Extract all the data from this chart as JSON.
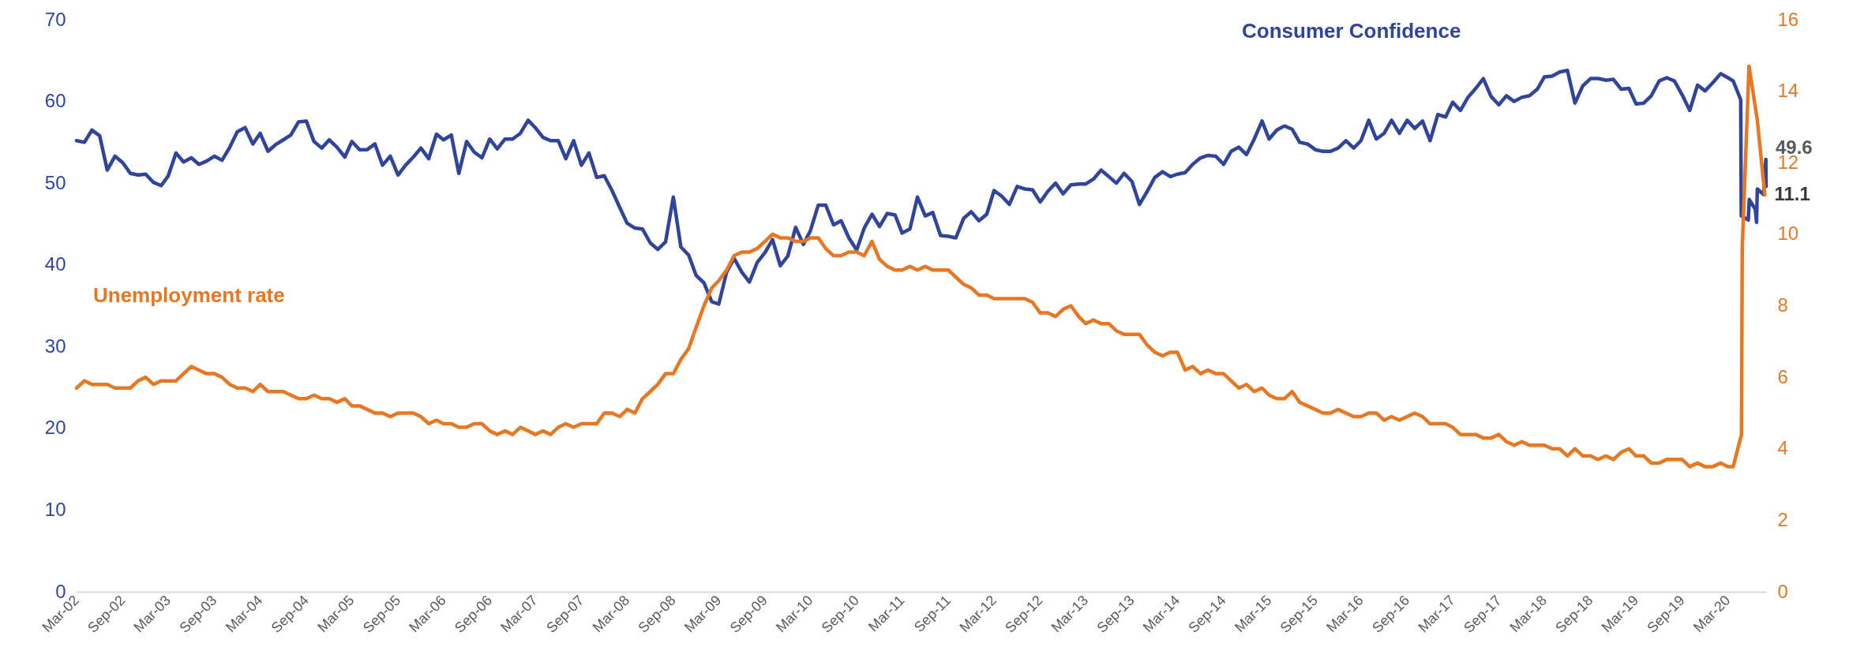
{
  "chart_data": {
    "type": "line",
    "xlim": [
      "2002-03",
      "2020-07-31"
    ],
    "xticks": [
      {
        "value": "2002-03",
        "label": "Mar-02"
      },
      {
        "value": "2002-09",
        "label": "Sep-02"
      },
      {
        "value": "2003-03",
        "label": "Mar-03"
      },
      {
        "value": "2003-09",
        "label": "Sep-03"
      },
      {
        "value": "2004-03",
        "label": "Mar-04"
      },
      {
        "value": "2004-09",
        "label": "Sep-04"
      },
      {
        "value": "2005-03",
        "label": "Mar-05"
      },
      {
        "value": "2005-09",
        "label": "Sep-05"
      },
      {
        "value": "2006-03",
        "label": "Mar-06"
      },
      {
        "value": "2006-09",
        "label": "Sep-06"
      },
      {
        "value": "2007-03",
        "label": "Mar-07"
      },
      {
        "value": "2007-09",
        "label": "Sep-07"
      },
      {
        "value": "2008-03",
        "label": "Mar-08"
      },
      {
        "value": "2008-09",
        "label": "Sep-08"
      },
      {
        "value": "2009-03",
        "label": "Mar-09"
      },
      {
        "value": "2009-09",
        "label": "Sep-09"
      },
      {
        "value": "2010-03",
        "label": "Mar-10"
      },
      {
        "value": "2010-09",
        "label": "Sep-10"
      },
      {
        "value": "2011-03",
        "label": "Mar-11"
      },
      {
        "value": "2011-09",
        "label": "Sep-11"
      },
      {
        "value": "2012-03",
        "label": "Mar-12"
      },
      {
        "value": "2012-09",
        "label": "Sep-12"
      },
      {
        "value": "2013-03",
        "label": "Mar-13"
      },
      {
        "value": "2013-09",
        "label": "Sep-13"
      },
      {
        "value": "2014-03",
        "label": "Mar-14"
      },
      {
        "value": "2014-09",
        "label": "Sep-14"
      },
      {
        "value": "2015-03",
        "label": "Mar-15"
      },
      {
        "value": "2015-09",
        "label": "Sep-15"
      },
      {
        "value": "2016-03",
        "label": "Mar-16"
      },
      {
        "value": "2016-09",
        "label": "Sep-16"
      },
      {
        "value": "2017-03",
        "label": "Mar-17"
      },
      {
        "value": "2017-09",
        "label": "Sep-17"
      },
      {
        "value": "2018-03",
        "label": "Mar-18"
      },
      {
        "value": "2018-09",
        "label": "Sep-18"
      },
      {
        "value": "2019-03",
        "label": "Mar-19"
      },
      {
        "value": "2019-09",
        "label": "Sep-19"
      },
      {
        "value": "2020-03",
        "label": "Mar-20"
      }
    ],
    "ylim": [
      0,
      70
    ],
    "yticks": [
      0,
      10,
      20,
      30,
      40,
      50,
      60,
      70
    ],
    "y2lim": [
      0,
      16
    ],
    "y2ticks": [
      0,
      2,
      4,
      6,
      8,
      10,
      12,
      14,
      16
    ],
    "series": [
      {
        "name": "Consumer Confidence",
        "color": "#2f459c",
        "x": [
          "2002-03",
          "2002-04",
          "2002-05",
          "2002-06",
          "2002-07",
          "2002-08",
          "2002-09",
          "2002-10",
          "2002-11",
          "2002-12",
          "2003-01",
          "2003-02",
          "2003-03",
          "2003-04",
          "2003-05",
          "2003-06",
          "2003-07",
          "2003-08",
          "2003-09",
          "2003-10",
          "2003-11",
          "2003-12",
          "2004-01",
          "2004-02",
          "2004-03",
          "2004-04",
          "2004-05",
          "2004-06",
          "2004-07",
          "2004-08",
          "2004-09",
          "2004-10",
          "2004-11",
          "2004-12",
          "2005-01",
          "2005-02",
          "2005-03",
          "2005-04",
          "2005-05",
          "2005-06",
          "2005-07",
          "2005-08",
          "2005-09",
          "2005-10",
          "2005-11",
          "2005-12",
          "2006-01",
          "2006-02",
          "2006-03",
          "2006-04",
          "2006-05",
          "2006-06",
          "2006-07",
          "2006-08",
          "2006-09",
          "2006-10",
          "2006-11",
          "2006-12",
          "2007-01",
          "2007-02",
          "2007-03",
          "2007-04",
          "2007-05",
          "2007-06",
          "2007-07",
          "2007-08",
          "2007-09",
          "2007-10",
          "2007-11",
          "2007-12",
          "2008-01",
          "2008-02",
          "2008-03",
          "2008-04",
          "2008-05",
          "2008-06",
          "2008-07",
          "2008-08",
          "2008-09",
          "2008-10",
          "2008-11",
          "2008-12",
          "2009-01",
          "2009-02",
          "2009-03",
          "2009-04",
          "2009-05",
          "2009-06",
          "2009-07",
          "2009-08",
          "2009-09",
          "2009-10",
          "2009-11",
          "2009-12",
          "2010-01",
          "2010-02",
          "2010-03",
          "2010-04",
          "2010-05",
          "2010-06",
          "2010-07",
          "2010-08",
          "2010-09",
          "2010-10",
          "2010-11",
          "2010-12",
          "2011-01",
          "2011-02",
          "2011-03",
          "2011-04",
          "2011-05",
          "2011-06",
          "2011-07",
          "2011-08",
          "2011-09",
          "2011-10",
          "2011-11",
          "2011-12",
          "2012-01",
          "2012-02",
          "2012-03",
          "2012-04",
          "2012-05",
          "2012-06",
          "2012-07",
          "2012-08",
          "2012-09",
          "2012-10",
          "2012-11",
          "2012-12",
          "2013-01",
          "2013-02",
          "2013-03",
          "2013-04",
          "2013-05",
          "2013-06",
          "2013-07",
          "2013-08",
          "2013-09",
          "2013-10",
          "2013-11",
          "2013-12",
          "2014-01",
          "2014-02",
          "2014-03",
          "2014-04",
          "2014-05",
          "2014-06",
          "2014-07",
          "2014-08",
          "2014-09",
          "2014-10",
          "2014-11",
          "2014-12",
          "2015-01",
          "2015-02",
          "2015-03",
          "2015-04",
          "2015-05",
          "2015-06",
          "2015-07",
          "2015-08",
          "2015-09",
          "2015-10",
          "2015-11",
          "2015-12",
          "2016-01",
          "2016-02",
          "2016-03",
          "2016-04",
          "2016-05",
          "2016-06",
          "2016-07",
          "2016-08",
          "2016-09",
          "2016-10",
          "2016-11",
          "2016-12",
          "2017-01",
          "2017-02",
          "2017-03",
          "2017-04",
          "2017-05",
          "2017-06",
          "2017-07",
          "2017-08",
          "2017-09",
          "2017-10",
          "2017-11",
          "2017-12",
          "2018-01",
          "2018-02",
          "2018-03",
          "2018-04",
          "2018-05",
          "2018-06",
          "2018-07",
          "2018-08",
          "2018-09",
          "2018-10",
          "2018-11",
          "2018-12",
          "2019-01",
          "2019-02",
          "2019-03",
          "2019-04",
          "2019-05",
          "2019-06",
          "2019-07",
          "2019-08",
          "2019-09",
          "2019-10",
          "2019-11",
          "2019-12",
          "2020-01",
          "2020-02",
          "2020-03",
          "2020-03-22",
          "2020-04-21",
          "2020-04-23",
          "2020-05-21",
          "2020-05-25",
          "2020-06-18",
          "2020-06-23",
          "2020-06-26",
          "2020-07-21",
          "2020-07-30",
          "2020-07-31"
        ],
        "values": [
          55.2,
          55.0,
          56.5,
          55.8,
          51.6,
          53.3,
          52.5,
          51.2,
          51.0,
          51.1,
          50.1,
          49.7,
          50.9,
          53.7,
          52.6,
          53.1,
          52.3,
          52.7,
          53.3,
          52.8,
          54.4,
          56.3,
          56.8,
          54.8,
          56.1,
          53.9,
          54.7,
          55.3,
          55.9,
          57.5,
          57.6,
          55.1,
          54.3,
          55.3,
          54.4,
          53.2,
          55.1,
          54.1,
          54.1,
          54.8,
          52.2,
          53.3,
          51.0,
          52.2,
          53.2,
          54.3,
          53.0,
          56.0,
          55.3,
          55.9,
          51.2,
          55.1,
          53.8,
          53.1,
          55.4,
          54.2,
          55.4,
          55.4,
          56.1,
          57.7,
          56.8,
          55.6,
          55.2,
          55.2,
          53.0,
          55.2,
          52.2,
          53.7,
          50.7,
          50.9,
          49.1,
          47.0,
          45.1,
          44.5,
          44.4,
          42.7,
          41.9,
          42.8,
          48.3,
          42.2,
          41.2,
          38.7,
          37.8,
          35.5,
          35.2,
          39.1,
          40.8,
          39.1,
          37.9,
          40.3,
          41.5,
          43.1,
          39.9,
          41.1,
          44.6,
          42.5,
          44.2,
          47.3,
          47.3,
          44.9,
          45.4,
          43.3,
          41.8,
          44.5,
          46.2,
          44.7,
          46.3,
          46.1,
          43.9,
          44.4,
          48.3,
          46.0,
          46.4,
          43.6,
          43.5,
          43.3,
          45.7,
          46.5,
          45.4,
          46.2,
          49.1,
          48.4,
          47.4,
          49.6,
          49.3,
          49.2,
          47.7,
          49.0,
          50.0,
          48.7,
          49.8,
          49.9,
          49.9,
          50.5,
          51.6,
          50.8,
          50.0,
          51.2,
          50.2,
          47.4,
          49.0,
          50.7,
          51.4,
          50.8,
          51.1,
          51.3,
          52.3,
          53.1,
          53.4,
          53.3,
          52.3,
          53.9,
          54.4,
          53.5,
          55.4,
          57.6,
          55.4,
          56.5,
          57.0,
          56.6,
          55.0,
          54.8,
          54.1,
          53.9,
          53.9,
          54.3,
          55.2,
          54.3,
          55.2,
          57.7,
          55.4,
          56.1,
          57.7,
          56.1,
          57.7,
          56.7,
          57.6,
          55.2,
          58.4,
          58.1,
          59.9,
          58.9,
          60.5,
          61.6,
          62.8,
          60.6,
          59.6,
          60.7,
          60.0,
          60.5,
          60.7,
          61.5,
          63.0,
          63.1,
          63.6,
          63.8,
          59.8,
          61.9,
          62.8,
          62.8,
          62.6,
          62.7,
          61.5,
          61.6,
          59.7,
          59.8,
          60.7,
          62.5,
          62.9,
          62.5,
          60.8,
          58.9,
          62.0,
          61.3,
          62.3,
          63.4,
          62.9,
          62.5,
          60.2,
          46.0,
          45.5,
          48.0,
          46.8,
          45.2,
          49.3,
          48.6,
          52.9,
          49.6
        ],
        "value_labels": [
          null,
          null,
          null,
          null,
          null,
          null,
          null,
          null,
          null,
          null,
          null,
          null,
          null,
          null,
          null,
          null,
          null,
          null,
          null,
          null,
          null,
          null,
          null,
          null,
          null,
          null,
          null,
          null,
          null,
          null,
          null,
          null,
          null,
          null,
          null,
          null,
          null,
          null,
          null,
          null,
          null,
          null,
          null,
          null,
          null,
          null,
          null,
          null,
          null,
          null,
          null,
          null,
          null,
          null,
          null,
          null,
          null,
          null,
          null,
          null,
          null,
          null,
          null,
          null,
          null,
          null,
          null,
          null,
          null,
          null,
          null,
          null,
          null,
          null,
          null,
          null,
          null,
          null,
          null,
          null,
          null,
          null,
          null,
          null,
          null,
          null,
          null,
          null,
          null,
          null,
          null,
          null,
          null,
          null,
          null,
          null,
          null,
          null,
          null,
          null,
          null,
          null,
          null,
          null,
          null,
          null,
          null,
          null,
          null,
          null,
          null,
          null,
          null,
          null,
          null,
          null,
          null,
          null,
          null,
          null,
          null,
          null,
          null,
          null,
          null,
          null,
          null,
          null,
          null,
          null,
          null,
          null,
          null,
          null,
          null,
          null,
          null,
          null,
          null,
          null,
          null,
          null,
          null,
          null,
          null,
          null,
          null,
          null,
          null,
          null,
          null,
          null,
          null,
          null,
          null,
          null,
          null,
          null,
          null,
          null,
          null,
          null,
          null,
          null,
          null,
          null,
          null,
          null,
          null,
          null,
          null,
          null,
          null,
          null,
          null,
          null,
          null,
          null,
          null,
          null,
          null,
          null,
          null,
          null,
          null,
          null,
          null,
          null,
          null,
          null,
          null,
          null,
          null,
          null,
          null,
          null,
          null,
          null,
          null,
          null,
          null,
          null,
          null,
          null,
          null,
          null,
          null,
          null,
          null,
          null,
          null,
          null,
          null,
          null,
          null,
          null,
          null,
          null,
          null,
          null,
          null,
          null,
          null,
          null,
          null,
          null,
          null,
          "49.6"
        ]
      },
      {
        "name": "Unemployment rate",
        "color": "#e87722",
        "axis": "y2",
        "x": [
          "2002-03",
          "2002-04",
          "2002-05",
          "2002-06",
          "2002-07",
          "2002-08",
          "2002-09",
          "2002-10",
          "2002-11",
          "2002-12",
          "2003-01",
          "2003-02",
          "2003-03",
          "2003-04",
          "2003-05",
          "2003-06",
          "2003-07",
          "2003-08",
          "2003-09",
          "2003-10",
          "2003-11",
          "2003-12",
          "2004-01",
          "2004-02",
          "2004-03",
          "2004-04",
          "2004-05",
          "2004-06",
          "2004-07",
          "2004-08",
          "2004-09",
          "2004-10",
          "2004-11",
          "2004-12",
          "2005-01",
          "2005-02",
          "2005-03",
          "2005-04",
          "2005-05",
          "2005-06",
          "2005-07",
          "2005-08",
          "2005-09",
          "2005-10",
          "2005-11",
          "2005-12",
          "2006-01",
          "2006-02",
          "2006-03",
          "2006-04",
          "2006-05",
          "2006-06",
          "2006-07",
          "2006-08",
          "2006-09",
          "2006-10",
          "2006-11",
          "2006-12",
          "2007-01",
          "2007-02",
          "2007-03",
          "2007-04",
          "2007-05",
          "2007-06",
          "2007-07",
          "2007-08",
          "2007-09",
          "2007-10",
          "2007-11",
          "2007-12",
          "2008-01",
          "2008-02",
          "2008-03",
          "2008-04",
          "2008-05",
          "2008-06",
          "2008-07",
          "2008-08",
          "2008-09",
          "2008-10",
          "2008-11",
          "2008-12",
          "2009-01",
          "2009-02",
          "2009-03",
          "2009-04",
          "2009-05",
          "2009-06",
          "2009-07",
          "2009-08",
          "2009-09",
          "2009-10",
          "2009-11",
          "2009-12",
          "2010-01",
          "2010-02",
          "2010-03",
          "2010-04",
          "2010-05",
          "2010-06",
          "2010-07",
          "2010-08",
          "2010-09",
          "2010-10",
          "2010-11",
          "2010-12",
          "2011-01",
          "2011-02",
          "2011-03",
          "2011-04",
          "2011-05",
          "2011-06",
          "2011-07",
          "2011-08",
          "2011-09",
          "2011-10",
          "2011-11",
          "2011-12",
          "2012-01",
          "2012-02",
          "2012-03",
          "2012-04",
          "2012-05",
          "2012-06",
          "2012-07",
          "2012-08",
          "2012-09",
          "2012-10",
          "2012-11",
          "2012-12",
          "2013-01",
          "2013-02",
          "2013-03",
          "2013-04",
          "2013-05",
          "2013-06",
          "2013-07",
          "2013-08",
          "2013-09",
          "2013-10",
          "2013-11",
          "2013-12",
          "2014-01",
          "2014-02",
          "2014-03",
          "2014-04",
          "2014-05",
          "2014-06",
          "2014-07",
          "2014-08",
          "2014-09",
          "2014-10",
          "2014-11",
          "2014-12",
          "2015-01",
          "2015-02",
          "2015-03",
          "2015-04",
          "2015-05",
          "2015-06",
          "2015-07",
          "2015-08",
          "2015-09",
          "2015-10",
          "2015-11",
          "2015-12",
          "2016-01",
          "2016-02",
          "2016-03",
          "2016-04",
          "2016-05",
          "2016-06",
          "2016-07",
          "2016-08",
          "2016-09",
          "2016-10",
          "2016-11",
          "2016-12",
          "2017-01",
          "2017-02",
          "2017-03",
          "2017-04",
          "2017-05",
          "2017-06",
          "2017-07",
          "2017-08",
          "2017-09",
          "2017-10",
          "2017-11",
          "2017-12",
          "2018-01",
          "2018-02",
          "2018-03",
          "2018-04",
          "2018-05",
          "2018-06",
          "2018-07",
          "2018-08",
          "2018-09",
          "2018-10",
          "2018-11",
          "2018-12",
          "2019-01",
          "2019-02",
          "2019-03",
          "2019-04",
          "2019-05",
          "2019-06",
          "2019-07",
          "2019-08",
          "2019-09",
          "2019-10",
          "2019-11",
          "2019-12",
          "2020-01",
          "2020-02",
          "2020-03",
          "2020-03-22",
          "2020-04-24",
          "2020-04-27",
          "2020-05-24",
          "2020-06-26",
          "2020-07-26"
        ],
        "values": [
          5.7,
          5.9,
          5.8,
          5.8,
          5.8,
          5.7,
          5.7,
          5.7,
          5.9,
          6.0,
          5.8,
          5.9,
          5.9,
          5.9,
          6.1,
          6.3,
          6.2,
          6.1,
          6.1,
          6.0,
          5.8,
          5.7,
          5.7,
          5.6,
          5.8,
          5.6,
          5.6,
          5.6,
          5.5,
          5.4,
          5.4,
          5.5,
          5.4,
          5.4,
          5.3,
          5.4,
          5.2,
          5.2,
          5.1,
          5.0,
          5.0,
          4.9,
          5.0,
          5.0,
          5.0,
          4.9,
          4.7,
          4.8,
          4.7,
          4.7,
          4.6,
          4.6,
          4.7,
          4.7,
          4.5,
          4.4,
          4.5,
          4.4,
          4.6,
          4.5,
          4.4,
          4.5,
          4.4,
          4.6,
          4.7,
          4.6,
          4.7,
          4.7,
          4.7,
          5.0,
          5.0,
          4.9,
          5.1,
          5.0,
          5.4,
          5.6,
          5.8,
          6.1,
          6.1,
          6.5,
          6.8,
          7.4,
          8.0,
          8.5,
          8.7,
          9.0,
          9.4,
          9.5,
          9.5,
          9.6,
          9.8,
          10.0,
          9.9,
          9.9,
          9.8,
          9.8,
          9.9,
          9.9,
          9.6,
          9.4,
          9.4,
          9.5,
          9.5,
          9.4,
          9.8,
          9.3,
          9.1,
          9.0,
          9.0,
          9.1,
          9.0,
          9.1,
          9.0,
          9.0,
          9.0,
          8.8,
          8.6,
          8.5,
          8.3,
          8.3,
          8.2,
          8.2,
          8.2,
          8.2,
          8.2,
          8.1,
          7.8,
          7.8,
          7.7,
          7.9,
          8.0,
          7.7,
          7.5,
          7.6,
          7.5,
          7.5,
          7.3,
          7.2,
          7.2,
          7.2,
          6.9,
          6.7,
          6.6,
          6.7,
          6.7,
          6.2,
          6.3,
          6.1,
          6.2,
          6.1,
          6.1,
          5.9,
          5.7,
          5.8,
          5.6,
          5.7,
          5.5,
          5.4,
          5.4,
          5.6,
          5.3,
          5.2,
          5.1,
          5.0,
          5.0,
          5.1,
          5.0,
          4.9,
          4.9,
          5.0,
          5.0,
          4.8,
          4.9,
          4.8,
          4.9,
          5.0,
          4.9,
          4.7,
          4.7,
          4.7,
          4.6,
          4.4,
          4.4,
          4.4,
          4.3,
          4.3,
          4.4,
          4.2,
          4.1,
          4.2,
          4.1,
          4.1,
          4.1,
          4.0,
          4.0,
          3.8,
          4.0,
          3.8,
          3.8,
          3.7,
          3.8,
          3.7,
          3.9,
          4.0,
          3.8,
          3.8,
          3.6,
          3.6,
          3.7,
          3.7,
          3.7,
          3.5,
          3.6,
          3.5,
          3.5,
          3.6,
          3.5,
          3.5,
          4.4,
          9.6,
          14.7,
          13.2,
          11.1
        ],
        "value_labels": [
          null,
          null,
          null,
          null,
          null,
          null,
          null,
          null,
          null,
          null,
          null,
          null,
          null,
          null,
          null,
          null,
          null,
          null,
          null,
          null,
          null,
          null,
          null,
          null,
          null,
          null,
          null,
          null,
          null,
          null,
          null,
          null,
          null,
          null,
          null,
          null,
          null,
          null,
          null,
          null,
          null,
          null,
          null,
          null,
          null,
          null,
          null,
          null,
          null,
          null,
          null,
          null,
          null,
          null,
          null,
          null,
          null,
          null,
          null,
          null,
          null,
          null,
          null,
          null,
          null,
          null,
          null,
          null,
          null,
          null,
          null,
          null,
          null,
          null,
          null,
          null,
          null,
          null,
          null,
          null,
          null,
          null,
          null,
          null,
          null,
          null,
          null,
          null,
          null,
          null,
          null,
          null,
          null,
          null,
          null,
          null,
          null,
          null,
          null,
          null,
          null,
          null,
          null,
          null,
          null,
          null,
          null,
          null,
          null,
          null,
          null,
          null,
          null,
          null,
          null,
          null,
          null,
          null,
          null,
          null,
          null,
          null,
          null,
          null,
          null,
          null,
          null,
          null,
          null,
          null,
          null,
          null,
          null,
          null,
          null,
          null,
          null,
          null,
          null,
          null,
          null,
          null,
          null,
          null,
          null,
          null,
          null,
          null,
          null,
          null,
          null,
          null,
          null,
          null,
          null,
          null,
          null,
          null,
          null,
          null,
          null,
          null,
          null,
          null,
          null,
          null,
          null,
          null,
          null,
          null,
          null,
          null,
          null,
          null,
          null,
          null,
          null,
          null,
          null,
          null,
          null,
          null,
          null,
          null,
          null,
          null,
          null,
          null,
          null,
          null,
          null,
          null,
          null,
          null,
          null,
          null,
          null,
          null,
          null,
          null,
          null,
          null,
          null,
          null,
          null,
          null,
          null,
          null,
          null,
          null,
          null,
          null,
          null,
          null,
          null,
          null,
          null,
          null,
          null,
          null,
          null,
          null,
          "11.1"
        ]
      }
    ]
  }
}
